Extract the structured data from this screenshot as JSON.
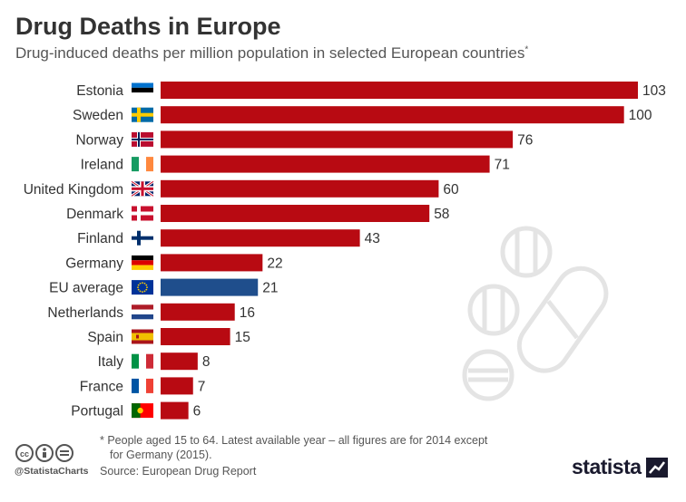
{
  "header": {
    "title": "Drug Deaths in Europe",
    "subtitle": "Drug-induced deaths per million population in selected European countries",
    "subtitle_mark": "*"
  },
  "footer": {
    "footnote_line1": "* People aged 15 to 64. Latest available year – all figures are for 2014 except",
    "footnote_line2": "for Germany (2015).",
    "source": "Source: European Drug Report",
    "handle": "@StatistaCharts",
    "logo": "statista"
  },
  "colors": {
    "bar_default": "#b80a12",
    "bar_highlight": "#1f4e8c",
    "text": "#333333",
    "watermark": "#e6e6e6"
  },
  "chart_data": {
    "type": "bar",
    "orientation": "horizontal",
    "categories": [
      "Estonia",
      "Sweden",
      "Norway",
      "Ireland",
      "United Kingdom",
      "Denmark",
      "Finland",
      "Germany",
      "EU average",
      "Netherlands",
      "Spain",
      "Italy",
      "France",
      "Portugal"
    ],
    "values": [
      103,
      100,
      76,
      71,
      60,
      58,
      43,
      22,
      21,
      16,
      15,
      8,
      7,
      6
    ],
    "highlight": [
      "EU average"
    ],
    "flags": [
      "estonia-flag",
      "sweden-flag",
      "norway-flag",
      "ireland-flag",
      "uk-flag",
      "denmark-flag",
      "finland-flag",
      "germany-flag",
      "eu-flag",
      "netherlands-flag",
      "spain-flag",
      "italy-flag",
      "france-flag",
      "portugal-flag"
    ],
    "title": "Drug Deaths in Europe",
    "xlabel": "",
    "ylabel": "",
    "xlim": [
      0,
      103
    ],
    "grid": false,
    "legend": "none",
    "data_labels": true
  }
}
